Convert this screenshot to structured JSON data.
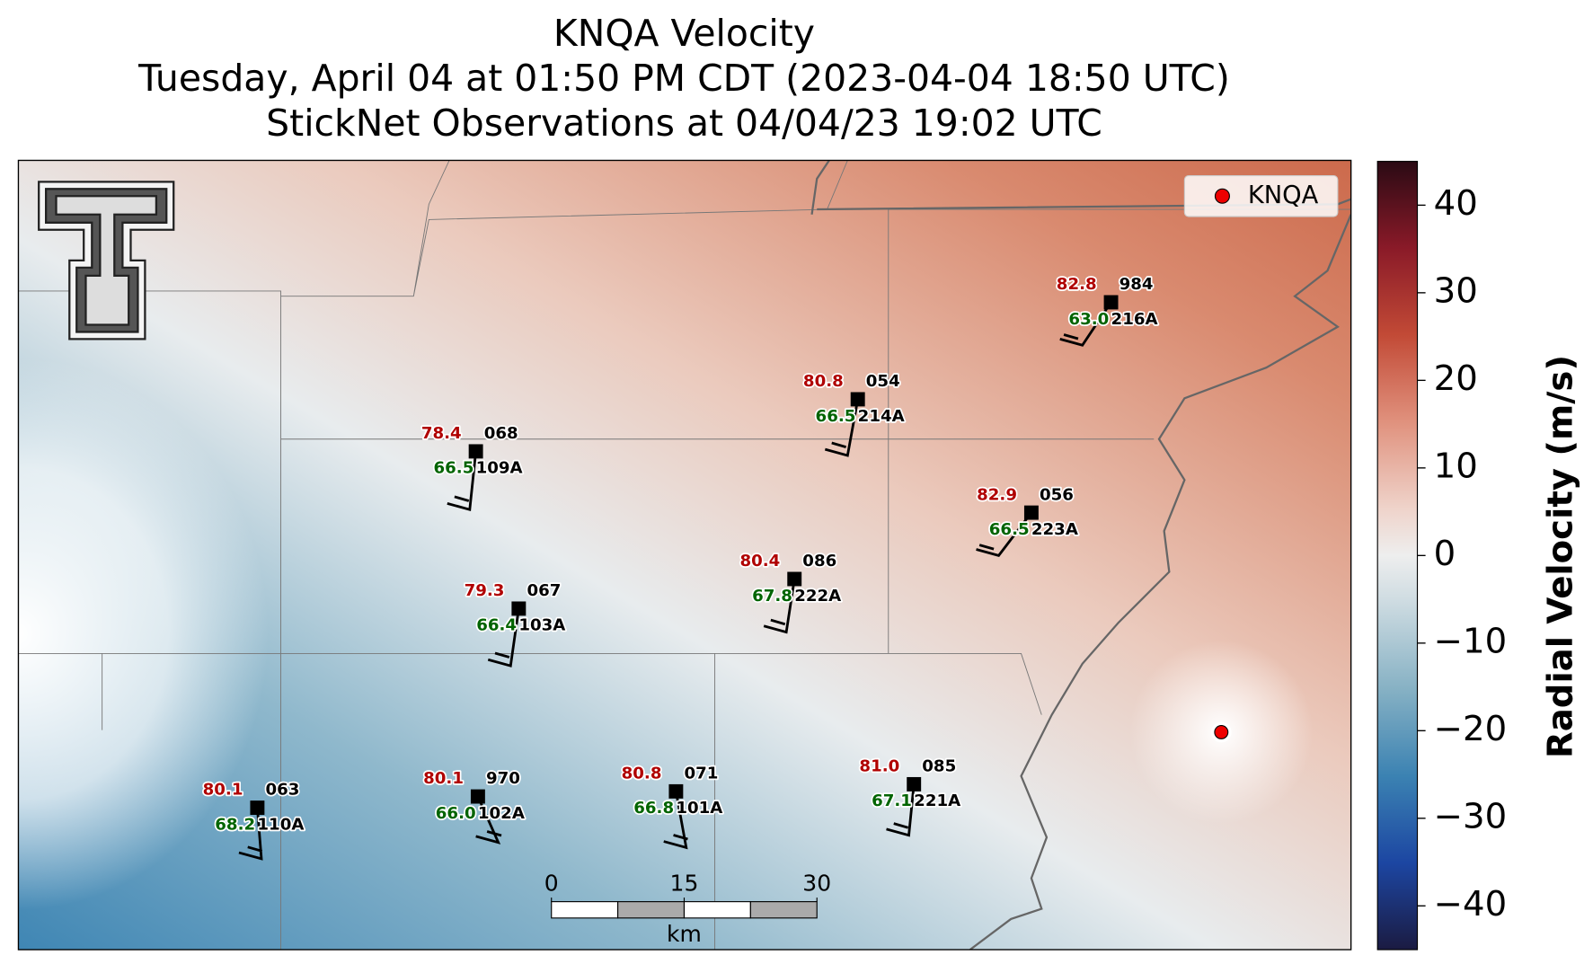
{
  "title": [
    "KNQA Velocity",
    "Tuesday, April 04 at 01:50 PM CDT (2023-04-04 18:50 UTC)",
    "StickNet Observations at 04/04/23 19:02 UTC"
  ],
  "legend": {
    "label": "KNQA"
  },
  "colorbar": {
    "label": "Radial Velocity (m/s)",
    "lim": [
      -45,
      45
    ],
    "ticks": [
      40,
      30,
      20,
      10,
      0,
      {
        "value": -10,
        "label": "−10"
      },
      {
        "value": -20,
        "label": "−20"
      },
      {
        "value": -30,
        "label": "−30"
      },
      {
        "value": -40,
        "label": "−40"
      }
    ]
  },
  "scale_bar": {
    "ticks": [
      0,
      15,
      30
    ],
    "unit": "km"
  },
  "stations": [
    {
      "id": "216A",
      "pressure": "984",
      "temperature": "82.8",
      "dewpoint": "63.0"
    },
    {
      "id": "214A",
      "pressure": "054",
      "temperature": "80.8",
      "dewpoint": "66.5"
    },
    {
      "id": "109A",
      "pressure": "068",
      "temperature": "78.4",
      "dewpoint": "66.5"
    },
    {
      "id": "223A",
      "pressure": "056",
      "temperature": "82.9",
      "dewpoint": "66.5"
    },
    {
      "id": "222A",
      "pressure": "086",
      "temperature": "80.4",
      "dewpoint": "67.8"
    },
    {
      "id": "103A",
      "pressure": "067",
      "temperature": "79.3",
      "dewpoint": "66.4"
    },
    {
      "id": "110A",
      "pressure": "063",
      "temperature": "80.1",
      "dewpoint": "68.2"
    },
    {
      "id": "102A",
      "pressure": "970",
      "temperature": "80.1",
      "dewpoint": "66.0"
    },
    {
      "id": "101A",
      "pressure": "071",
      "temperature": "80.8",
      "dewpoint": "66.8"
    },
    {
      "id": "221A",
      "pressure": "085",
      "temperature": "81.0",
      "dewpoint": "67.1"
    }
  ]
}
